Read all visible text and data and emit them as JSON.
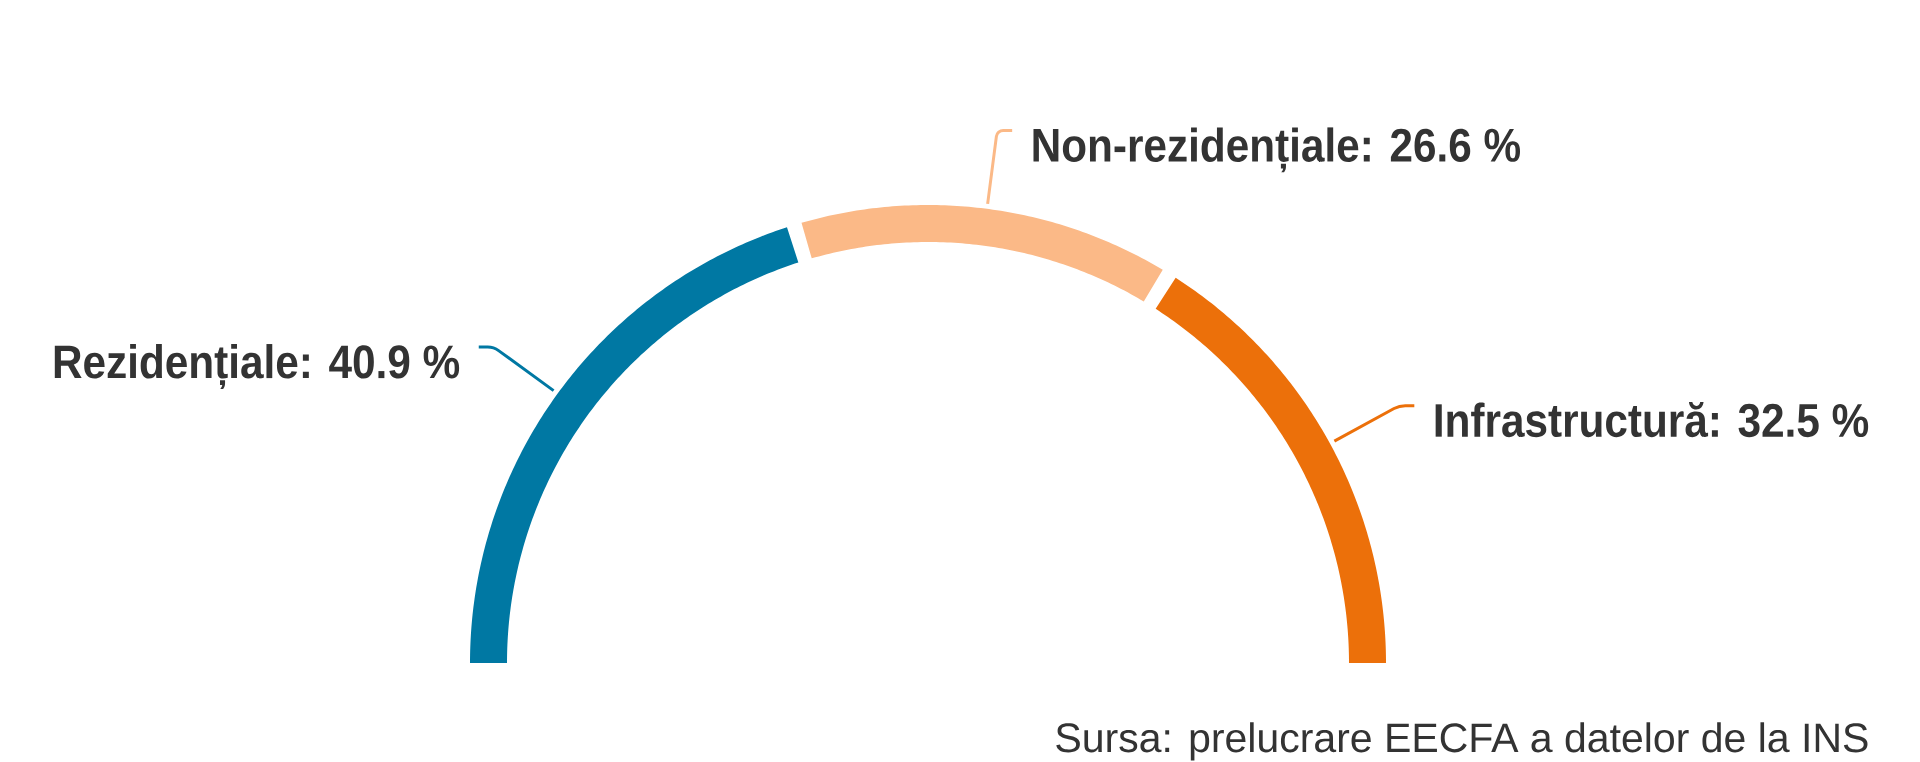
{
  "chart_data": {
    "type": "donut",
    "categories": [
      "Rezidențiale",
      "Non-rezidențiale",
      "Infrastructură"
    ],
    "values": [
      40.9,
      26.6,
      32.5
    ],
    "colors": [
      "#0078a3",
      "#fbb987",
      "#ec700a"
    ],
    "value_labels": [
      ": 40.9 %",
      ": 26.6 %",
      ": 32.5 %"
    ],
    "annotations": [
      "Sursa: prelucrare EECFA a datelor de la INS"
    ]
  }
}
